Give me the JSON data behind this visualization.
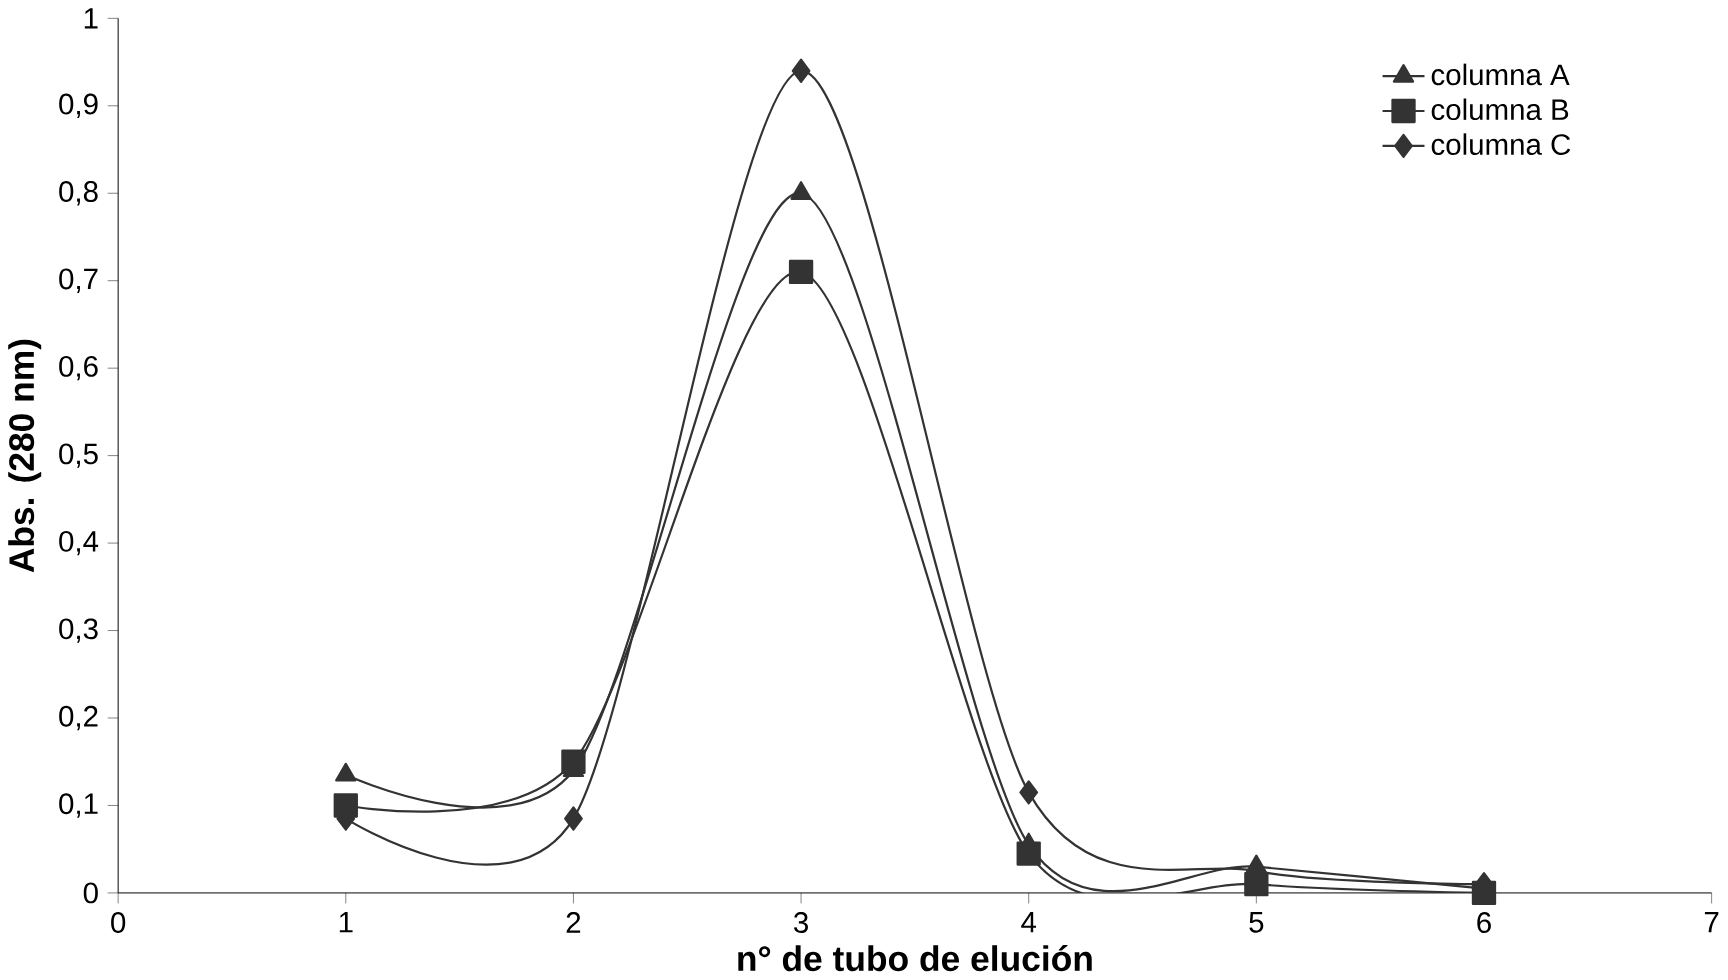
{
  "chart_data": {
    "type": "line",
    "xlabel": "n° de tubo de elución",
    "ylabel": "Abs. (280 nm)",
    "x": [
      1,
      2,
      3,
      4,
      5,
      6
    ],
    "series": [
      {
        "name": "columna A",
        "color": "#333333",
        "marker": "triangle",
        "values": [
          0.135,
          0.14,
          0.8,
          0.055,
          0.03,
          0.005
        ]
      },
      {
        "name": "columna B",
        "color": "#333333",
        "marker": "square",
        "values": [
          0.1,
          0.15,
          0.71,
          0.045,
          0.01,
          0.0
        ]
      },
      {
        "name": "columna C",
        "color": "#333333",
        "marker": "diamond",
        "values": [
          0.085,
          0.085,
          0.94,
          0.115,
          0.025,
          0.01
        ]
      }
    ],
    "xlim": [
      0,
      7
    ],
    "xticks": [
      0,
      1,
      2,
      3,
      4,
      5,
      6,
      7
    ],
    "ylim": [
      0,
      1
    ],
    "yticks": [
      {
        "value": 0,
        "label": "0"
      },
      {
        "value": 0.1,
        "label": "0,1"
      },
      {
        "value": 0.2,
        "label": "0,2"
      },
      {
        "value": 0.3,
        "label": "0,3"
      },
      {
        "value": 0.4,
        "label": "0,4"
      },
      {
        "value": 0.5,
        "label": "0,5"
      },
      {
        "value": 0.6,
        "label": "0,6"
      },
      {
        "value": 0.7,
        "label": "0,7"
      },
      {
        "value": 0.8,
        "label": "0,8"
      },
      {
        "value": 0.9,
        "label": "0,9"
      },
      {
        "value": 1,
        "label": "1"
      }
    ],
    "legend": "top right",
    "grid": false,
    "line_style": "solid"
  }
}
